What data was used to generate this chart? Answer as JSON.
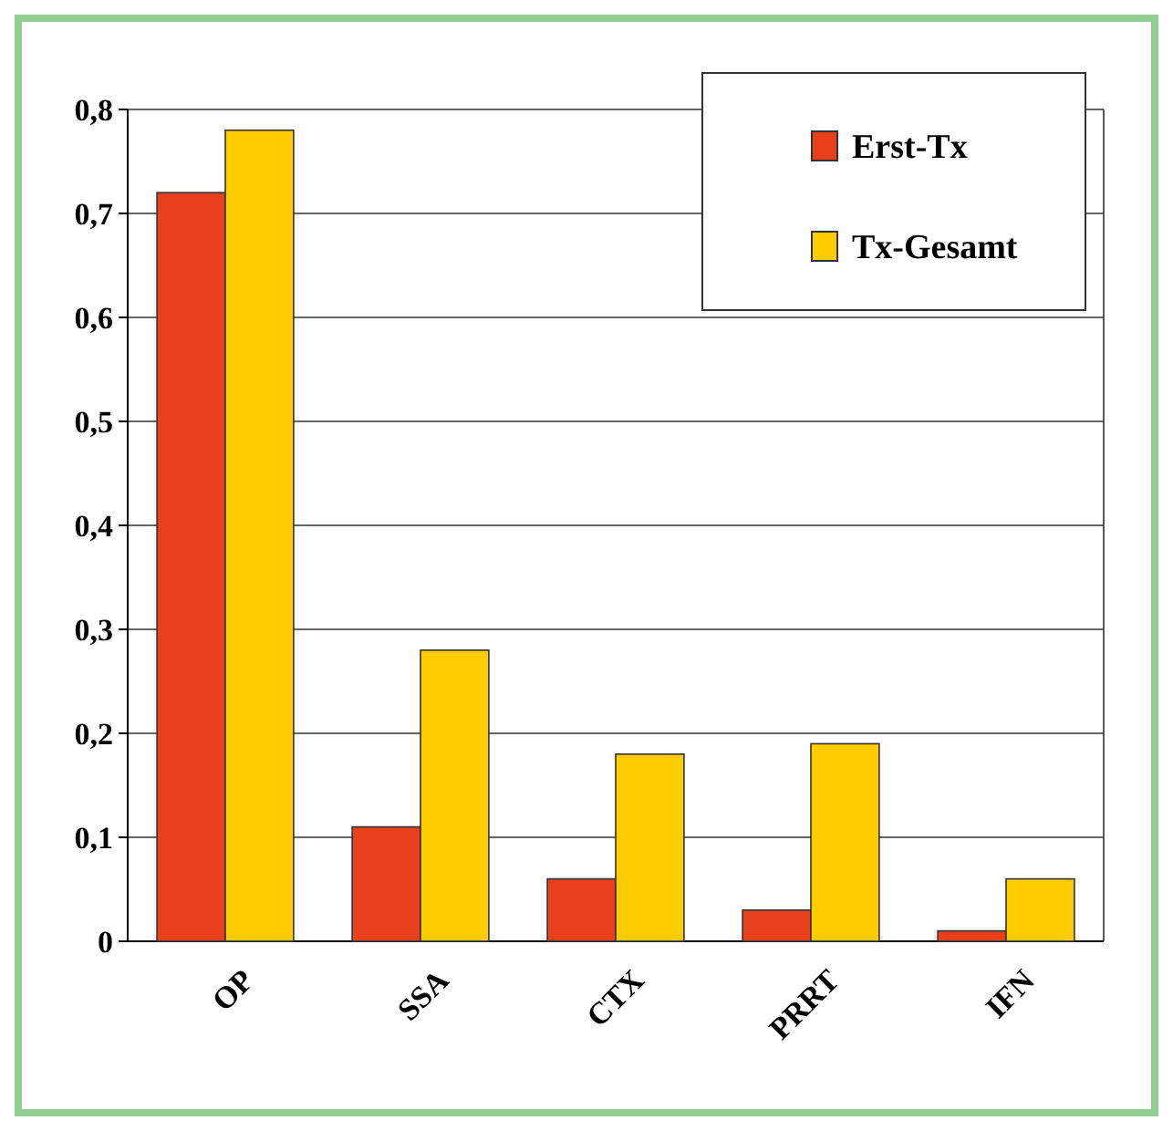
{
  "chart_data": {
    "type": "bar",
    "categories": [
      "OP",
      "SSA",
      "CTX",
      "PRRT",
      "IFN"
    ],
    "series": [
      {
        "name": "Erst-Tx",
        "color": "#e8401c",
        "values": [
          0.72,
          0.11,
          0.06,
          0.03,
          0.01
        ]
      },
      {
        "name": "Tx-Gesamt",
        "color": "#ffcc00",
        "values": [
          0.78,
          0.28,
          0.18,
          0.19,
          0.06
        ]
      }
    ],
    "ylim": [
      0,
      0.8
    ],
    "yticks": [
      {
        "value": 0,
        "label": "0"
      },
      {
        "value": 0.1,
        "label": "0,1"
      },
      {
        "value": 0.2,
        "label": "0,2"
      },
      {
        "value": 0.3,
        "label": "0,3"
      },
      {
        "value": 0.4,
        "label": "0,4"
      },
      {
        "value": 0.5,
        "label": "0,5"
      },
      {
        "value": 0.6,
        "label": "0,6"
      },
      {
        "value": 0.7,
        "label": "0,7"
      },
      {
        "value": 0.8,
        "label": "0,8"
      }
    ],
    "grid": "y",
    "legend": "top right"
  }
}
